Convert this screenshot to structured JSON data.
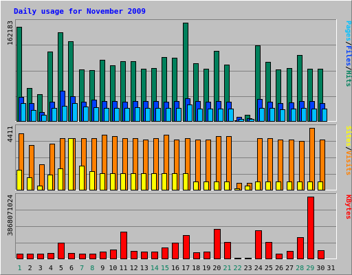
{
  "chart_data": {
    "type": "bar",
    "title": "Daily usage for November 2009",
    "categories": [
      "1",
      "2",
      "3",
      "4",
      "5",
      "6",
      "7",
      "8",
      "9",
      "10",
      "11",
      "12",
      "13",
      "14",
      "15",
      "16",
      "17",
      "18",
      "19",
      "20",
      "21",
      "22",
      "23",
      "24",
      "25",
      "26",
      "27",
      "28",
      "29",
      "30",
      "31"
    ],
    "weekend_days": [
      "1",
      "7",
      "8",
      "14",
      "15",
      "21",
      "22",
      "28",
      "29"
    ],
    "panels": [
      {
        "id": "hits-files-pages",
        "ymax_label": "162183",
        "ymax": 162183,
        "series_labels": [
          "Pages",
          "/",
          "Files",
          "/",
          "Hits"
        ],
        "series": [
          {
            "name": "Hits",
            "color": "#00805c",
            "values": [
              155000,
              55000,
              44000,
              114000,
              146000,
              131000,
              85000,
              84000,
              101000,
              92000,
              99000,
              99000,
              86000,
              87000,
              105000,
              104000,
              162183,
              95000,
              86000,
              116000,
              93000,
              1500,
              10000,
              125000,
              97000,
              85000,
              87000,
              109000,
              86000,
              86000,
              0
            ]
          },
          {
            "name": "Files",
            "color": "#0040ff",
            "values": [
              40000,
              29000,
              15000,
              32000,
              50000,
              41000,
              32000,
              35000,
              33000,
              33000,
              32000,
              33000,
              33000,
              33000,
              32000,
              33000,
              37000,
              33000,
              32000,
              33000,
              32000,
              7000,
              5000,
              36000,
              32000,
              30000,
              31000,
              33000,
              33000,
              30000,
              0
            ]
          },
          {
            "name": "Pages",
            "color": "#00c0ff",
            "values": [
              30000,
              18000,
              10000,
              22000,
              25000,
              30000,
              24000,
              23000,
              22000,
              22000,
              21000,
              23000,
              22000,
              21000,
              22000,
              22000,
              27000,
              20000,
              20000,
              20000,
              20000,
              3000,
              3000,
              22000,
              21000,
              19000,
              20000,
              21000,
              20000,
              20000,
              0
            ]
          }
        ]
      },
      {
        "id": "sites-visits",
        "ymax_label": "4411",
        "ymax": 4411,
        "series_labels": [
          "Sites",
          "/",
          "Visits"
        ],
        "series": [
          {
            "name": "Visits",
            "color": "#ff8000",
            "values": [
              4000,
              3200,
              1800,
              3300,
              3700,
              3700,
              3700,
              3700,
              3900,
              3800,
              3700,
              3700,
              3600,
              3700,
              3900,
              3600,
              3700,
              3600,
              3600,
              3800,
              3800,
              500,
              500,
              3700,
              3700,
              3600,
              3600,
              3500,
              4411,
              3600,
              0
            ]
          },
          {
            "name": "Sites",
            "color": "#ffff00",
            "values": [
              1400,
              900,
              300,
              1100,
              1500,
              3700,
              1700,
              1300,
              1200,
              1200,
              1200,
              1200,
              1200,
              1200,
              1200,
              1200,
              1200,
              600,
              600,
              600,
              600,
              100,
              300,
              600,
              600,
              600,
              600,
              600,
              600,
              600,
              0
            ]
          }
        ]
      },
      {
        "id": "kbytes",
        "ymax_label": "3868071024",
        "ymax": 3868071024,
        "series_labels": [
          "KBytes"
        ],
        "series": [
          {
            "name": "KBytes",
            "color": "#ff0000",
            "values": [
              300000000,
              300000000,
              300000000,
              350000000,
              1000000000,
              340000000,
              320000000,
              320000000,
              450000000,
              570000000,
              1680000000,
              490000000,
              450000000,
              410000000,
              700000000,
              1000000000,
              1460000000,
              400000000,
              450000000,
              1850000000,
              1030000000,
              10000000,
              10000000,
              1780000000,
              1040000000,
              280000000,
              470000000,
              1350000000,
              3868071024,
              510000000,
              0
            ]
          }
        ]
      }
    ]
  }
}
